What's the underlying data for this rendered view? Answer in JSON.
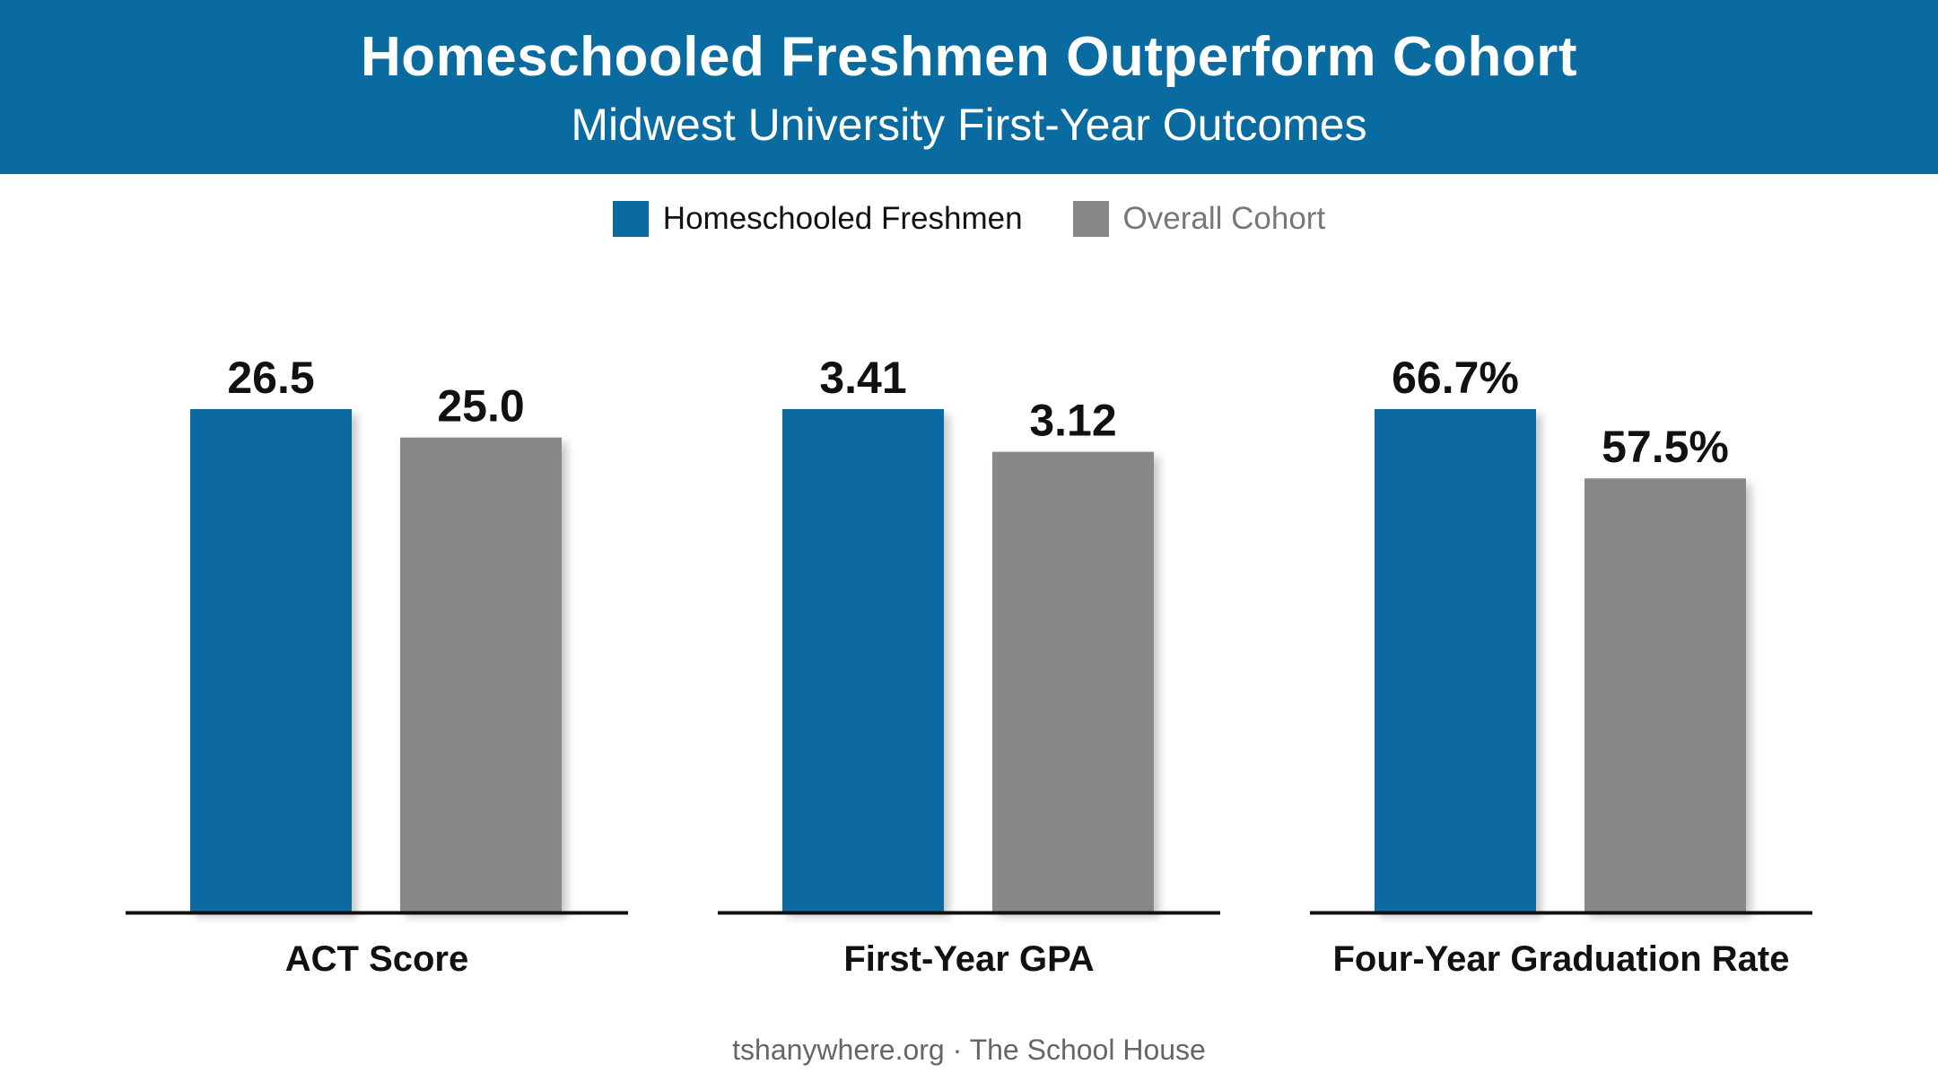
{
  "header": {
    "title": "Homeschooled Freshmen Outperform Cohort",
    "subtitle": "Midwest University First-Year Outcomes"
  },
  "legend": {
    "items": [
      {
        "label": "Homeschooled Freshmen",
        "color": "#0a6ba0"
      },
      {
        "label": "Overall Cohort",
        "color": "#888888"
      }
    ]
  },
  "chart_data": [
    {
      "type": "bar",
      "category": "ACT Score",
      "series": [
        {
          "name": "Homeschooled Freshmen",
          "value": 26.5,
          "label": "26.5"
        },
        {
          "name": "Overall Cohort",
          "value": 25.0,
          "label": "25.0"
        }
      ]
    },
    {
      "type": "bar",
      "category": "First-Year GPA",
      "series": [
        {
          "name": "Homeschooled Freshmen",
          "value": 3.41,
          "label": "3.41"
        },
        {
          "name": "Overall Cohort",
          "value": 3.12,
          "label": "3.12"
        }
      ]
    },
    {
      "type": "bar",
      "category": "Four-Year Graduation Rate",
      "series": [
        {
          "name": "Homeschooled Freshmen",
          "value": 66.7,
          "label": "66.7%"
        },
        {
          "name": "Overall Cohort",
          "value": 57.5,
          "label": "57.5%"
        }
      ]
    }
  ],
  "footer": {
    "source": "tshanywhere.org · The School House"
  }
}
